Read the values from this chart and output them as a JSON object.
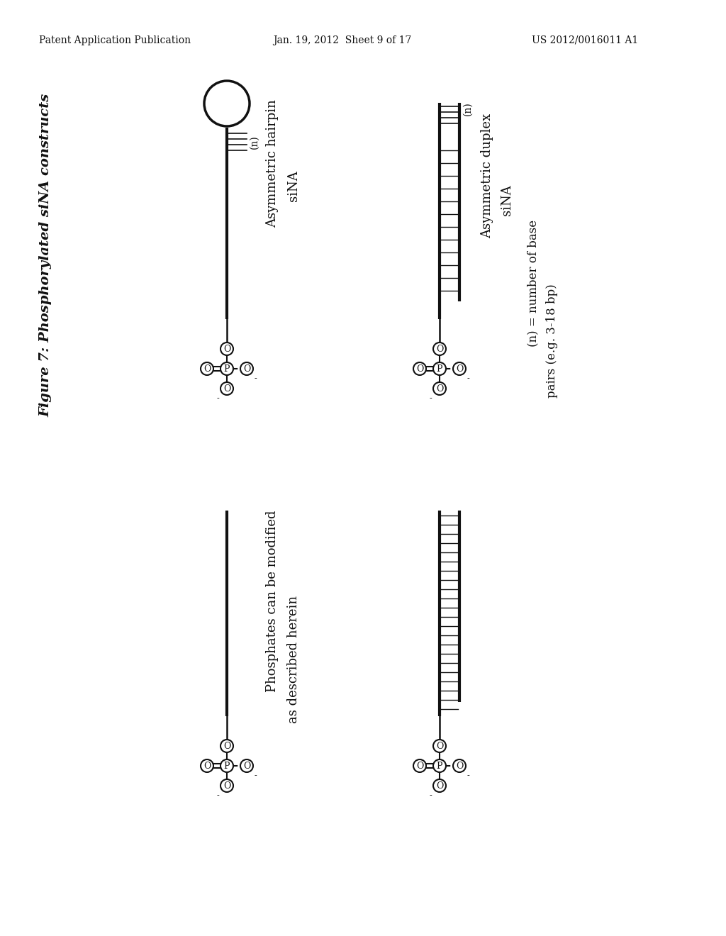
{
  "title": "Figure 7: Phosphorylated siNA constructs",
  "header_left": "Patent Application Publication",
  "header_center": "Jan. 19, 2012  Sheet 9 of 17",
  "header_right": "US 2012/0016011 A1",
  "bg_color": "#ffffff",
  "text_color": "#111111"
}
